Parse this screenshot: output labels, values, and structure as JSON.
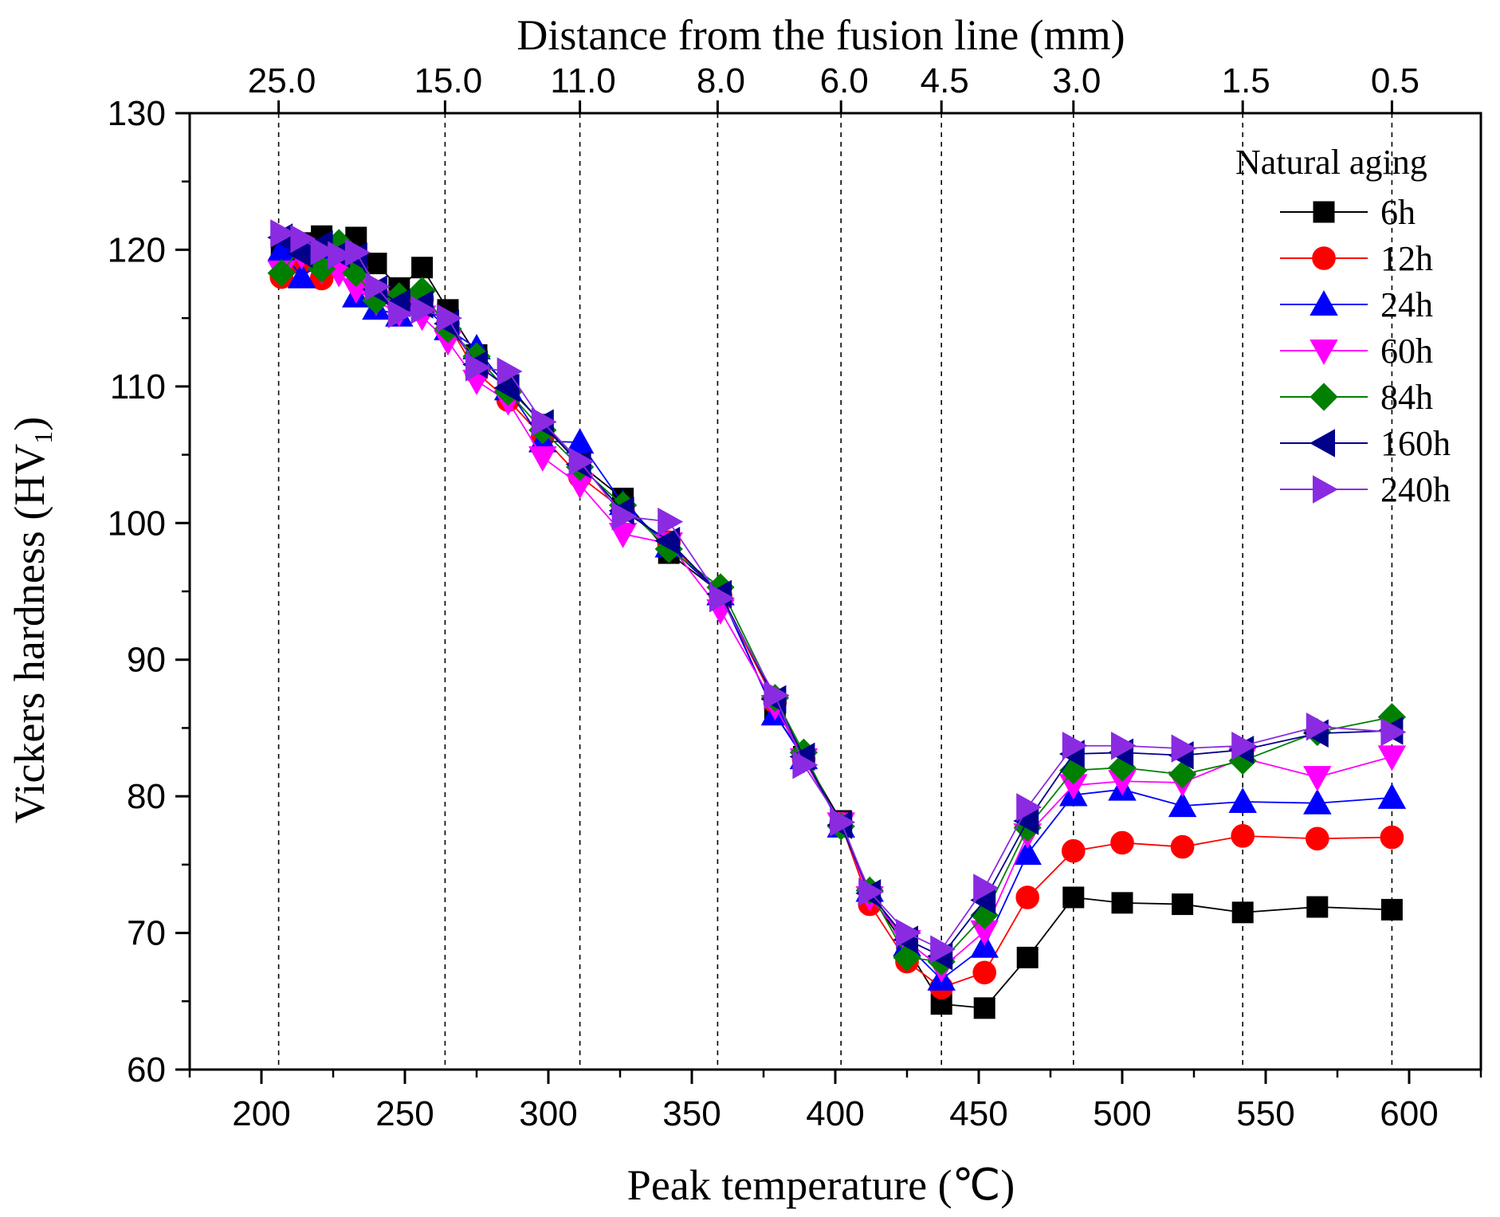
{
  "chart_data": {
    "type": "line",
    "xlabel": "Peak temperature (℃)",
    "x2label": "Distance from the fusion line (mm)",
    "ylabel": "Vickers hardness (HV",
    "ylabel_sub": "1",
    "ylabel_close": ")",
    "xlim": [
      175,
      625
    ],
    "ylim": [
      60,
      130
    ],
    "xticks": [
      200,
      250,
      300,
      350,
      400,
      450,
      500,
      550,
      600
    ],
    "yticks": [
      60,
      70,
      80,
      90,
      100,
      110,
      120,
      130
    ],
    "top_ticks": [
      {
        "x": 206,
        "label": "25.0"
      },
      {
        "x": 264,
        "label": "15.0"
      },
      {
        "x": 311,
        "label": "11.0"
      },
      {
        "x": 359,
        "label": "8.0"
      },
      {
        "x": 402,
        "label": "6.0"
      },
      {
        "x": 437,
        "label": "4.5"
      },
      {
        "x": 483,
        "label": "3.0"
      },
      {
        "x": 542,
        "label": "1.5"
      },
      {
        "x": 594,
        "label": "0.5"
      }
    ],
    "legend_title": "Natural aging",
    "legend_position": "top-right",
    "x": [
      207,
      214,
      221,
      227,
      233,
      240,
      248,
      256,
      265,
      275,
      286,
      298,
      311,
      326,
      342,
      360,
      379,
      389,
      402,
      412,
      425,
      437,
      452,
      467,
      483,
      500,
      521,
      542,
      568,
      594
    ],
    "series": [
      {
        "name": "6h",
        "color": "#000000",
        "marker": "square",
        "values": [
          119.8,
          120.5,
          121.0,
          120.3,
          120.9,
          119.0,
          117.2,
          118.7,
          115.6,
          112.3,
          110.1,
          107.2,
          104.3,
          101.8,
          97.8,
          94.9,
          86.0,
          82.9,
          78.2,
          72.8,
          68.9,
          64.8,
          64.5,
          68.2,
          72.6,
          72.2,
          72.1,
          71.5,
          71.9,
          71.7
        ]
      },
      {
        "name": "12h",
        "color": "#ff0000",
        "marker": "circle",
        "values": [
          118.0,
          119.0,
          117.9,
          119.2,
          118.7,
          116.8,
          115.9,
          116.4,
          114.6,
          111.0,
          109.0,
          106.3,
          103.4,
          101.0,
          98.6,
          94.7,
          86.9,
          82.7,
          78.0,
          72.1,
          67.9,
          66.0,
          67.1,
          72.6,
          76.0,
          76.6,
          76.3,
          77.1,
          76.9,
          77.0
        ]
      },
      {
        "name": "24h",
        "color": "#0000ff",
        "marker": "triangle-up",
        "values": [
          120.0,
          118.0,
          119.2,
          120.1,
          116.6,
          115.7,
          115.2,
          116.0,
          114.2,
          112.8,
          109.8,
          106.0,
          105.9,
          101.4,
          98.3,
          94.8,
          86.0,
          82.8,
          77.8,
          73.1,
          69.1,
          66.6,
          69.0,
          75.8,
          80.1,
          80.5,
          79.3,
          79.6,
          79.5,
          79.9
        ]
      },
      {
        "name": "60h",
        "color": "#ff00ff",
        "marker": "triangle-down",
        "values": [
          118.4,
          119.6,
          118.5,
          118.3,
          117.1,
          116.2,
          115.4,
          115.1,
          113.3,
          110.4,
          108.9,
          104.8,
          102.8,
          99.2,
          98.5,
          93.6,
          86.6,
          82.7,
          78.0,
          72.6,
          69.4,
          67.4,
          70.1,
          77.2,
          80.8,
          81.1,
          81.0,
          82.8,
          81.4,
          82.9
        ]
      },
      {
        "name": "84h",
        "color": "#008000",
        "marker": "diamond",
        "values": [
          118.3,
          120.3,
          118.6,
          120.5,
          118.3,
          116.3,
          116.6,
          117.0,
          114.2,
          112.2,
          109.6,
          106.8,
          104.1,
          101.3,
          98.1,
          95.3,
          87.2,
          83.2,
          77.8,
          73.1,
          68.2,
          67.9,
          71.3,
          77.7,
          81.9,
          82.1,
          81.6,
          82.6,
          84.7,
          85.8
        ]
      },
      {
        "name": "160h",
        "color": "#00008b",
        "marker": "triangle-left",
        "values": [
          120.9,
          119.7,
          120.4,
          119.7,
          119.5,
          117.1,
          116.1,
          116.0,
          114.6,
          111.6,
          109.9,
          107.3,
          104.3,
          100.9,
          98.7,
          94.8,
          87.1,
          82.9,
          77.9,
          72.9,
          69.5,
          68.3,
          72.4,
          78.2,
          83.1,
          83.2,
          83.0,
          83.4,
          84.6,
          84.8
        ]
      },
      {
        "name": "240h",
        "color": "#8a2be2",
        "marker": "triangle-right",
        "values": [
          121.2,
          120.8,
          119.9,
          119.6,
          119.8,
          117.3,
          115.3,
          115.6,
          115.0,
          111.4,
          111.1,
          107.4,
          104.5,
          100.5,
          100.1,
          94.5,
          87.4,
          82.3,
          78.1,
          73.0,
          70.0,
          68.8,
          73.3,
          79.2,
          83.7,
          83.7,
          83.5,
          83.7,
          85.1,
          84.7
        ]
      }
    ]
  }
}
